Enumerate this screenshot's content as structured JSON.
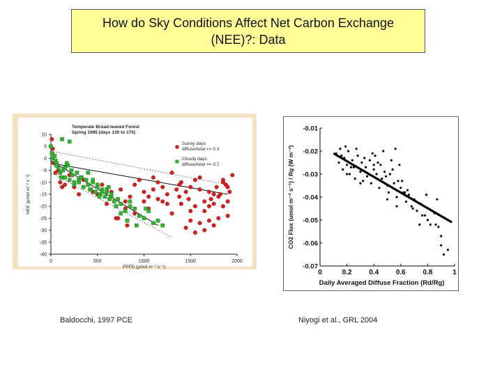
{
  "slide": {
    "title_line1": "How do Sky Conditions Affect Net Carbon Exchange",
    "title_line2": "(NEE)?: Data",
    "caption_left": "Baldocchi, 1997 PCE",
    "caption_right": "Niyogi et al., GRL 2004"
  },
  "colors": {
    "title_bg": "#ffff99",
    "sunny": "#d42020",
    "cloudy": "#33b233",
    "left_frame": "#f3e2c2"
  },
  "chart_data": [
    {
      "type": "scatter",
      "title": "Temperate Broad-leaved Forest",
      "subtitle": "Spring 1995 (days 130 to 170)",
      "xlabel": "PPFD (μmol m⁻² s⁻¹)",
      "ylabel": "NEE (μmol m⁻² s⁻¹)",
      "xlim": [
        0,
        2000
      ],
      "ylim": [
        -40,
        10
      ],
      "xticks": [
        "0",
        "500",
        "1000",
        "1500",
        "2000"
      ],
      "yticks": [
        "10",
        "5",
        "0",
        "-5",
        "-10",
        "-15",
        "-20",
        "-25",
        "-30",
        "-35",
        "-40"
      ],
      "grid": false,
      "legend_position": "top-right",
      "series": [
        {
          "name": "Sunny days diffuse/total <= 0.3",
          "color": "#d42020",
          "x": [
            10,
            20,
            15,
            30,
            50,
            80,
            100,
            120,
            150,
            200,
            250,
            300,
            350,
            400,
            450,
            500,
            550,
            600,
            650,
            700,
            720,
            750,
            800,
            820,
            850,
            900,
            950,
            1000,
            1050,
            1100,
            1150,
            1200,
            1250,
            1300,
            1350,
            1380,
            1400,
            1450,
            1500,
            1550,
            1600,
            1650,
            1700,
            1720,
            1750,
            1780,
            1800,
            1820,
            1850,
            1880,
            1900,
            1920,
            1950,
            1450,
            1500,
            1550,
            1600,
            1650,
            1700,
            1750,
            1800,
            1850,
            1900,
            1600,
            1700,
            1750,
            1850,
            1900,
            1400,
            1500,
            1300,
            1200,
            1100,
            1000,
            900,
            800,
            700,
            1550,
            1650,
            1480,
            1380,
            1250,
            1150,
            1050
          ],
          "y": [
            8,
            4,
            2,
            -2,
            -6,
            -5,
            -10,
            -12,
            -11,
            -7,
            -12,
            -15,
            -9,
            -11,
            -14,
            -15,
            -11,
            -19,
            -14,
            -20,
            -25,
            -13,
            -18,
            -28,
            -16,
            -11,
            -9,
            -14,
            -21,
            -8,
            -17,
            -12,
            -15,
            -23,
            -13,
            -16,
            -10,
            -14,
            -12,
            -9,
            -13,
            -18,
            -14,
            -17,
            -19,
            -12,
            -16,
            -15,
            -10,
            -11,
            -18,
            -14,
            -7,
            -29,
            -26,
            -31,
            -27,
            -30,
            -26,
            -28,
            -25,
            -20,
            -24,
            -8,
            -20,
            -15,
            -9,
            -12,
            -19,
            -22,
            -6,
            -18,
            -13,
            -18,
            -23,
            -21,
            -25,
            -20,
            -22,
            -17,
            -11,
            -19,
            -10,
            -16
          ],
          "values_estimated": true
        },
        {
          "name": "Cloudy days diffuse/total >= 0.7",
          "color": "#33b233",
          "x": [
            0,
            10,
            20,
            40,
            60,
            80,
            100,
            130,
            150,
            180,
            200,
            230,
            250,
            280,
            300,
            330,
            350,
            380,
            400,
            430,
            450,
            480,
            500,
            530,
            550,
            580,
            600,
            630,
            650,
            680,
            700,
            750,
            800,
            850,
            900,
            950,
            1000,
            1050,
            1100,
            1150,
            1200,
            50,
            150,
            250,
            350,
            450,
            550,
            650,
            750,
            850,
            200,
            300,
            400,
            500,
            600,
            120,
            220,
            320,
            420,
            520,
            620,
            720,
            820,
            920,
            1020,
            60,
            110,
            170
          ],
          "y": [
            5,
            2,
            0,
            1,
            -2,
            -4,
            -6,
            -5,
            -8,
            -3,
            -9,
            -7,
            -11,
            -6,
            -10,
            -8,
            -12,
            -9,
            -11,
            -13,
            -10,
            -14,
            -12,
            -15,
            -13,
            -16,
            -14,
            -17,
            -16,
            -18,
            -20,
            -19,
            -22,
            -18,
            -21,
            -24,
            -25,
            -22,
            -27,
            -26,
            -28,
            -1,
            -4,
            -10,
            -12,
            -9,
            -14,
            -15,
            -23,
            -20,
            7,
            -9,
            -6,
            -11,
            -13,
            8,
            -5,
            -8,
            -13,
            -16,
            -12,
            -17,
            -26,
            -28,
            -21,
            -3,
            -8,
            -2
          ],
          "values_estimated": true
        }
      ]
    },
    {
      "type": "scatter",
      "xlabel": "Daily Averaged Diffuse Fraction (Rd/Rg)",
      "ylabel": "CO2 Flux (umol m⁻² s⁻¹) / Rg (W m⁻²)",
      "xlim": [
        0,
        1
      ],
      "ylim": [
        -0.07,
        -0.01
      ],
      "xticks": [
        "0",
        "0.2",
        "0.4",
        "0.6",
        "0.8",
        "1"
      ],
      "yticks": [
        "-0.01",
        "-0.02",
        "-0.03",
        "-0.04",
        "-0.05",
        "-0.06",
        "-0.07"
      ],
      "grid": false,
      "series": [
        {
          "color": "#000000",
          "x": [
            0.12,
            0.14,
            0.15,
            0.17,
            0.18,
            0.2,
            0.21,
            0.22,
            0.24,
            0.25,
            0.26,
            0.28,
            0.3,
            0.31,
            0.32,
            0.34,
            0.35,
            0.37,
            0.38,
            0.4,
            0.41,
            0.42,
            0.44,
            0.45,
            0.46,
            0.48,
            0.5,
            0.51,
            0.52,
            0.54,
            0.55,
            0.57,
            0.58,
            0.6,
            0.62,
            0.64,
            0.66,
            0.68,
            0.7,
            0.72,
            0.75,
            0.78,
            0.8,
            0.82,
            0.85,
            0.88,
            0.9,
            0.92,
            0.95,
            0.16,
            0.19,
            0.23,
            0.27,
            0.33,
            0.36,
            0.39,
            0.43,
            0.47,
            0.49,
            0.53,
            0.56,
            0.59,
            0.61,
            0.65,
            0.69,
            0.74,
            0.79,
            0.86,
            0.9,
            0.2,
            0.3,
            0.4,
            0.5,
            0.57,
            0.63,
            0.87,
            0.76
          ],
          "y": [
            -0.021,
            -0.025,
            -0.019,
            -0.028,
            -0.023,
            -0.026,
            -0.02,
            -0.03,
            -0.024,
            -0.027,
            -0.032,
            -0.022,
            -0.029,
            -0.025,
            -0.033,
            -0.027,
            -0.031,
            -0.024,
            -0.034,
            -0.028,
            -0.022,
            -0.03,
            -0.036,
            -0.026,
            -0.032,
            -0.029,
            -0.035,
            -0.038,
            -0.03,
            -0.028,
            -0.034,
            -0.04,
            -0.033,
            -0.036,
            -0.038,
            -0.042,
            -0.039,
            -0.044,
            -0.041,
            -0.046,
            -0.043,
            -0.048,
            -0.05,
            -0.052,
            -0.047,
            -0.053,
            -0.061,
            -0.065,
            -0.063,
            -0.022,
            -0.018,
            -0.027,
            -0.019,
            -0.023,
            -0.03,
            -0.021,
            -0.025,
            -0.02,
            -0.031,
            -0.024,
            -0.019,
            -0.026,
            -0.033,
            -0.037,
            -0.045,
            -0.052,
            -0.039,
            -0.052,
            -0.057,
            -0.03,
            -0.034,
            -0.026,
            -0.041,
            -0.044,
            -0.038,
            -0.041,
            -0.048
          ],
          "values_estimated": true
        }
      ],
      "fit_line": {
        "x": [
          0.1,
          0.98
        ],
        "y": [
          -0.021,
          -0.051
        ]
      }
    }
  ]
}
